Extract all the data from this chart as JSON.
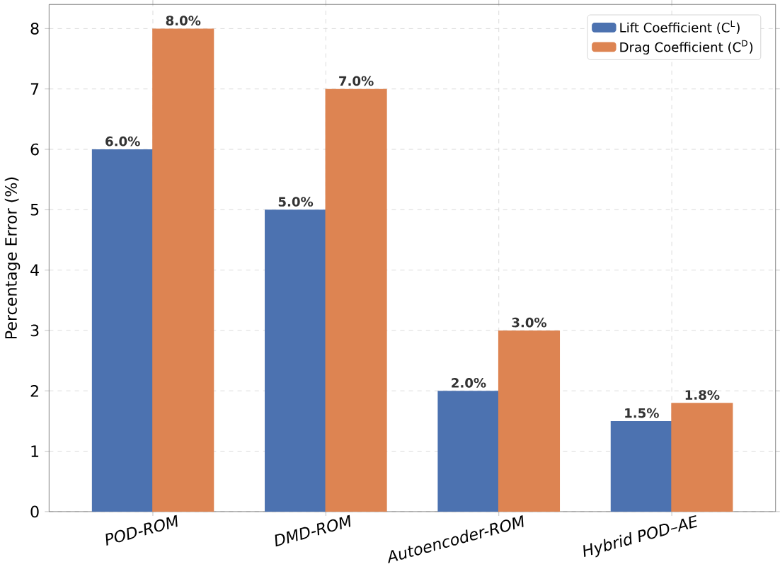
{
  "chart_data": {
    "type": "bar",
    "ylabel": "Percentage Error (%)",
    "categories": [
      "POD-ROM",
      "DMD-ROM",
      "Autoencoder-ROM",
      "Hybrid POD–AE"
    ],
    "series": [
      {
        "name": "Lift Coefficient (C$^{L}$)",
        "color": "#4c72b0",
        "values": [
          6.0,
          5.0,
          2.0,
          1.5
        ],
        "value_labels": [
          "6.0%",
          "5.0%",
          "2.0%",
          "1.5%"
        ]
      },
      {
        "name": "Drag Coefficient (C$^{D}$)",
        "color": "#dd8452",
        "values": [
          8.0,
          7.0,
          3.0,
          1.8
        ],
        "value_labels": [
          "8.0%",
          "7.0%",
          "3.0%",
          "1.8%"
        ]
      }
    ],
    "ylim": [
      0,
      8.4
    ],
    "yticks": [
      0,
      1,
      2,
      3,
      4,
      5,
      6,
      7,
      8
    ],
    "grid": true,
    "legend": "top right"
  }
}
